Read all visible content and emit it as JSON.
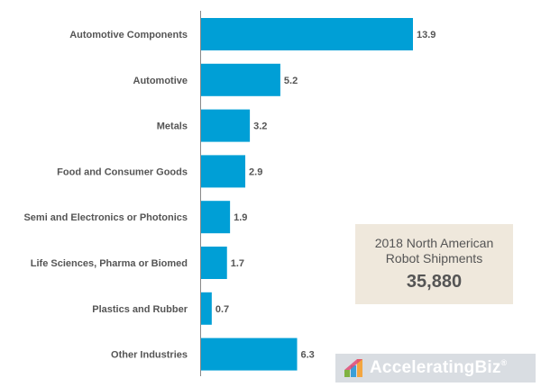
{
  "chart_data": {
    "type": "bar",
    "orientation": "horizontal",
    "categories": [
      "Automotive Components",
      "Automotive",
      "Metals",
      "Food and Consumer Goods",
      "Semi and Electronics or Photonics",
      "Life Sciences, Pharma or Biomed",
      "Plastics and Rubber",
      "Other Industries"
    ],
    "values": [
      13.9,
      5.2,
      3.2,
      2.9,
      1.9,
      1.7,
      0.7,
      6.3
    ],
    "value_labels": [
      "13.9",
      "5.2",
      "3.2",
      "2.9",
      "1.9",
      "1.7",
      "0.7",
      "6.3"
    ],
    "xlim": [
      0,
      13.9
    ],
    "bar_color": "#009fd6",
    "grid": false,
    "legend": "none"
  },
  "callout": {
    "title_line1": "2018 North American",
    "title_line2": "Robot Shipments",
    "value": "35,880",
    "background": "#efe8dc"
  },
  "brand": {
    "name": "AcceleratingBiz",
    "registered_mark": "®",
    "icon": "accelerating-biz-logo-icon"
  }
}
